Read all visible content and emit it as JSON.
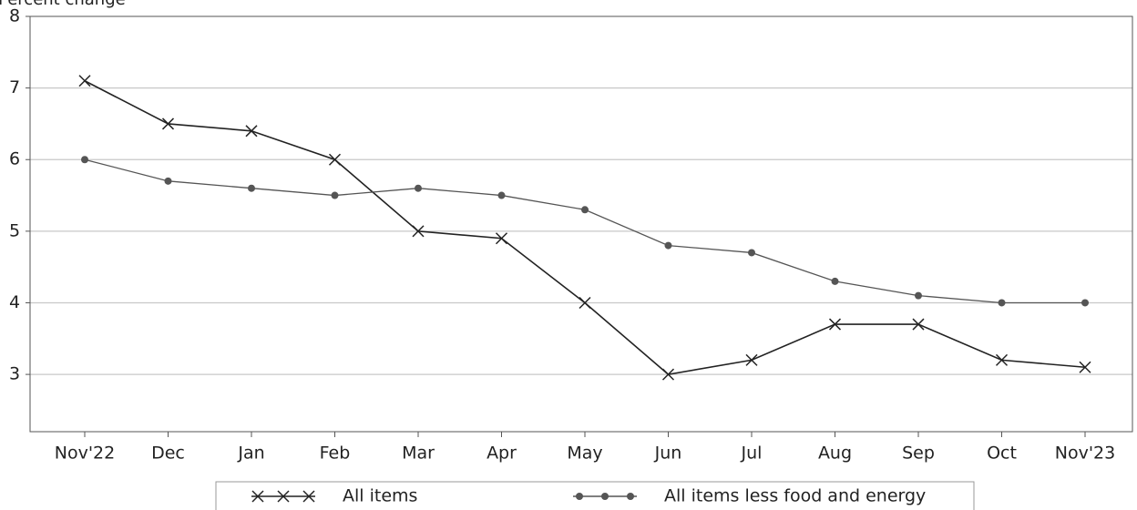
{
  "chart_data": {
    "type": "line",
    "ylabel": "Percent change",
    "categories": [
      "Nov'22",
      "Dec",
      "Jan",
      "Feb",
      "Mar",
      "Apr",
      "May",
      "Jun",
      "Jul",
      "Aug",
      "Sep",
      "Oct",
      "Nov'23"
    ],
    "ylim": [
      2.2,
      8
    ],
    "yticks": [
      3,
      4,
      5,
      6,
      7,
      8
    ],
    "grid": "horizontal",
    "legend_position": "bottom",
    "series": [
      {
        "name": "All items",
        "marker": "x",
        "color": "#222222",
        "values": [
          7.1,
          6.5,
          6.4,
          6.0,
          5.0,
          4.9,
          4.0,
          3.0,
          3.2,
          3.7,
          3.7,
          3.2,
          3.1
        ]
      },
      {
        "name": "All items less food and energy",
        "marker": "dot",
        "color": "#555555",
        "values": [
          6.0,
          5.7,
          5.6,
          5.5,
          5.6,
          5.5,
          5.3,
          4.8,
          4.7,
          4.3,
          4.1,
          4.0,
          4.0
        ]
      }
    ]
  }
}
